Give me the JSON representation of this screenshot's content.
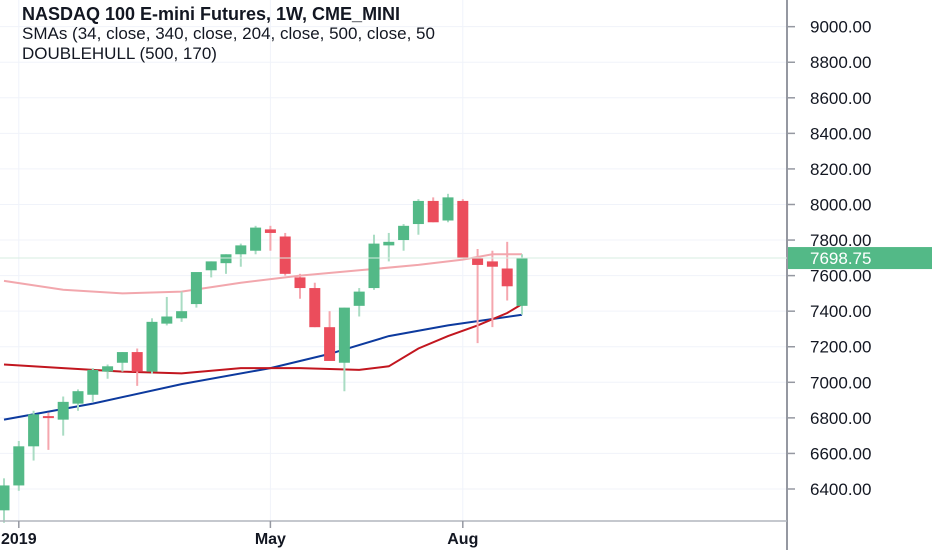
{
  "legend": {
    "title": "NASDAQ 100 E-mini Futures, 1W, CME_MINI",
    "sma": "SMAs (34, close, 340, close, 204, close, 500, close, 50",
    "hull": "DOUBLEHULL (500, 170)"
  },
  "colors": {
    "up": "#53b987",
    "down": "#eb4d5c",
    "sma_blue": "#0d3a9e",
    "sma_red": "#c2161f",
    "sma_pink": "#f2a7ad",
    "axis_text": "#131722",
    "price_badge": "#53b987"
  },
  "chart_data": {
    "type": "candlestick",
    "title": "NASDAQ 100 E-mini Futures, 1W, CME_MINI",
    "ylim": [
      6220,
      9150
    ],
    "y_ticks": [
      "6400.00",
      "6600.00",
      "6800.00",
      "7000.00",
      "7200.00",
      "7400.00",
      "7600.00",
      "7800.00",
      "8000.00",
      "8200.00",
      "8400.00",
      "8600.00",
      "8800.00",
      "9000.00"
    ],
    "x_ticks": [
      {
        "label": "2019",
        "index": 1
      },
      {
        "label": "May",
        "index": 18
      },
      {
        "label": "Aug",
        "index": 31
      }
    ],
    "last_price": "7698.75",
    "candles": [
      {
        "o": 6280,
        "h": 6460,
        "l": 6210,
        "c": 6420
      },
      {
        "o": 6420,
        "h": 6670,
        "l": 6390,
        "c": 6640
      },
      {
        "o": 6640,
        "h": 6840,
        "l": 6560,
        "c": 6820
      },
      {
        "o": 6810,
        "h": 6830,
        "l": 6620,
        "c": 6800
      },
      {
        "o": 6790,
        "h": 6920,
        "l": 6700,
        "c": 6890
      },
      {
        "o": 6880,
        "h": 6960,
        "l": 6840,
        "c": 6950
      },
      {
        "o": 6930,
        "h": 7080,
        "l": 6890,
        "c": 7070
      },
      {
        "o": 7060,
        "h": 7100,
        "l": 7020,
        "c": 7090
      },
      {
        "o": 7110,
        "h": 7170,
        "l": 7060,
        "c": 7170
      },
      {
        "o": 7170,
        "h": 7190,
        "l": 6980,
        "c": 7060
      },
      {
        "o": 7060,
        "h": 7360,
        "l": 7050,
        "c": 7340
      },
      {
        "o": 7330,
        "h": 7480,
        "l": 7320,
        "c": 7370
      },
      {
        "o": 7360,
        "h": 7510,
        "l": 7340,
        "c": 7400
      },
      {
        "o": 7440,
        "h": 7600,
        "l": 7420,
        "c": 7620
      },
      {
        "o": 7630,
        "h": 7680,
        "l": 7590,
        "c": 7680
      },
      {
        "o": 7670,
        "h": 7720,
        "l": 7610,
        "c": 7720
      },
      {
        "o": 7720,
        "h": 7780,
        "l": 7650,
        "c": 7770
      },
      {
        "o": 7740,
        "h": 7880,
        "l": 7720,
        "c": 7870
      },
      {
        "o": 7860,
        "h": 7880,
        "l": 7740,
        "c": 7840
      },
      {
        "o": 7820,
        "h": 7840,
        "l": 7600,
        "c": 7610
      },
      {
        "o": 7590,
        "h": 7610,
        "l": 7470,
        "c": 7530
      },
      {
        "o": 7530,
        "h": 7560,
        "l": 7310,
        "c": 7310
      },
      {
        "o": 7310,
        "h": 7400,
        "l": 7120,
        "c": 7120
      },
      {
        "o": 7110,
        "h": 7420,
        "l": 6950,
        "c": 7420
      },
      {
        "o": 7430,
        "h": 7530,
        "l": 7370,
        "c": 7510
      },
      {
        "o": 7530,
        "h": 7830,
        "l": 7520,
        "c": 7780
      },
      {
        "o": 7770,
        "h": 7840,
        "l": 7680,
        "c": 7790
      },
      {
        "o": 7800,
        "h": 7890,
        "l": 7740,
        "c": 7880
      },
      {
        "o": 7890,
        "h": 8030,
        "l": 7830,
        "c": 8020
      },
      {
        "o": 8020,
        "h": 8040,
        "l": 7900,
        "c": 7900
      },
      {
        "o": 7910,
        "h": 8060,
        "l": 7900,
        "c": 8040
      },
      {
        "o": 8020,
        "h": 8030,
        "l": 7700,
        "c": 7700
      },
      {
        "o": 7700,
        "h": 7750,
        "l": 7220,
        "c": 7660
      },
      {
        "o": 7680,
        "h": 7740,
        "l": 7310,
        "c": 7650
      },
      {
        "o": 7640,
        "h": 7790,
        "l": 7460,
        "c": 7540
      },
      {
        "o": 7430,
        "h": 7720,
        "l": 7380,
        "c": 7699
      }
    ],
    "series": [
      {
        "color": "#0d3a9e",
        "points": [
          [
            0,
            6790
          ],
          [
            6,
            6880
          ],
          [
            12,
            6990
          ],
          [
            18,
            7080
          ],
          [
            22,
            7160
          ],
          [
            26,
            7260
          ],
          [
            30,
            7320
          ],
          [
            35,
            7380
          ]
        ]
      },
      {
        "color": "#c2161f",
        "points": [
          [
            0,
            7100
          ],
          [
            4,
            7080
          ],
          [
            8,
            7060
          ],
          [
            12,
            7050
          ],
          [
            16,
            7080
          ],
          [
            20,
            7080
          ],
          [
            24,
            7070
          ],
          [
            26,
            7090
          ],
          [
            28,
            7190
          ],
          [
            30,
            7260
          ],
          [
            32,
            7320
          ],
          [
            34,
            7390
          ],
          [
            35,
            7440
          ]
        ]
      },
      {
        "color": "#f2a7ad",
        "points": [
          [
            0,
            7570
          ],
          [
            4,
            7520
          ],
          [
            8,
            7500
          ],
          [
            12,
            7510
          ],
          [
            16,
            7560
          ],
          [
            20,
            7600
          ],
          [
            24,
            7630
          ],
          [
            28,
            7660
          ],
          [
            31,
            7690
          ],
          [
            33,
            7720
          ],
          [
            35,
            7720
          ]
        ]
      }
    ]
  }
}
